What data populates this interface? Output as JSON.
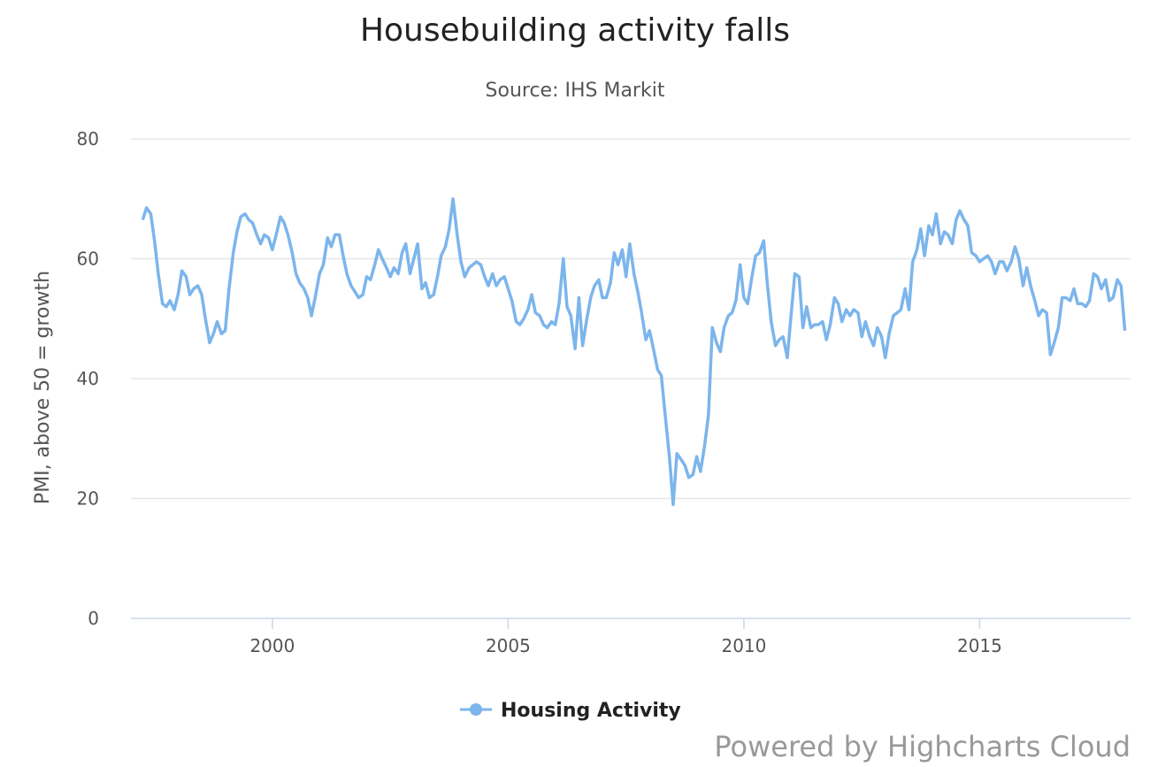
{
  "chart_data": {
    "type": "line",
    "title": "Housebuilding activity falls",
    "subtitle": "Source: IHS Markit",
    "ylabel": "PMI, above 50 = growth",
    "xlabel": "",
    "ylim": [
      0,
      80
    ],
    "yticks": [
      0,
      20,
      40,
      60,
      80
    ],
    "xticks": [
      "2000",
      "2005",
      "2010",
      "2015"
    ],
    "xrange": [
      1997.0,
      2018.2
    ],
    "grid": true,
    "legend_placement": "bottom-center",
    "series": [
      {
        "name": "Housing Activity",
        "color": "#7cb5ec",
        "points": [
          [
            1997.25,
            66.5
          ],
          [
            1997.33,
            68.5
          ],
          [
            1997.42,
            67.5
          ],
          [
            1997.5,
            63.0
          ],
          [
            1997.58,
            57.5
          ],
          [
            1997.67,
            52.5
          ],
          [
            1997.75,
            52.0
          ],
          [
            1997.83,
            53.0
          ],
          [
            1997.92,
            51.5
          ],
          [
            1998.0,
            54.0
          ],
          [
            1998.08,
            58.0
          ],
          [
            1998.17,
            57.0
          ],
          [
            1998.25,
            54.0
          ],
          [
            1998.33,
            55.0
          ],
          [
            1998.42,
            55.5
          ],
          [
            1998.5,
            54.0
          ],
          [
            1998.58,
            50.0
          ],
          [
            1998.67,
            46.0
          ],
          [
            1998.75,
            47.5
          ],
          [
            1998.83,
            49.5
          ],
          [
            1998.92,
            47.5
          ],
          [
            1999.0,
            48.0
          ],
          [
            1999.08,
            55.0
          ],
          [
            1999.17,
            61.0
          ],
          [
            1999.25,
            64.5
          ],
          [
            1999.33,
            67.0
          ],
          [
            1999.42,
            67.5
          ],
          [
            1999.5,
            66.5
          ],
          [
            1999.58,
            66.0
          ],
          [
            1999.67,
            64.0
          ],
          [
            1999.75,
            62.5
          ],
          [
            1999.83,
            64.0
          ],
          [
            1999.92,
            63.5
          ],
          [
            2000.0,
            61.5
          ],
          [
            2000.08,
            64.0
          ],
          [
            2000.17,
            67.0
          ],
          [
            2000.25,
            66.0
          ],
          [
            2000.33,
            64.0
          ],
          [
            2000.42,
            61.0
          ],
          [
            2000.5,
            57.5
          ],
          [
            2000.58,
            56.0
          ],
          [
            2000.67,
            55.0
          ],
          [
            2000.75,
            53.5
          ],
          [
            2000.83,
            50.5
          ],
          [
            2000.92,
            54.0
          ],
          [
            2001.0,
            57.5
          ],
          [
            2001.08,
            59.0
          ],
          [
            2001.17,
            63.5
          ],
          [
            2001.25,
            62.0
          ],
          [
            2001.33,
            64.0
          ],
          [
            2001.42,
            64.0
          ],
          [
            2001.5,
            60.5
          ],
          [
            2001.58,
            57.5
          ],
          [
            2001.67,
            55.5
          ],
          [
            2001.75,
            54.5
          ],
          [
            2001.83,
            53.5
          ],
          [
            2001.92,
            54.0
          ],
          [
            2002.0,
            57.0
          ],
          [
            2002.08,
            56.5
          ],
          [
            2002.17,
            59.0
          ],
          [
            2002.25,
            61.5
          ],
          [
            2002.33,
            60.0
          ],
          [
            2002.42,
            58.5
          ],
          [
            2002.5,
            57.0
          ],
          [
            2002.58,
            58.5
          ],
          [
            2002.67,
            57.5
          ],
          [
            2002.75,
            61.0
          ],
          [
            2002.83,
            62.5
          ],
          [
            2002.92,
            57.5
          ],
          [
            2003.0,
            60.0
          ],
          [
            2003.08,
            62.5
          ],
          [
            2003.17,
            55.0
          ],
          [
            2003.25,
            56.0
          ],
          [
            2003.33,
            53.5
          ],
          [
            2003.42,
            54.0
          ],
          [
            2003.5,
            57.0
          ],
          [
            2003.58,
            60.5
          ],
          [
            2003.67,
            62.0
          ],
          [
            2003.75,
            65.0
          ],
          [
            2003.83,
            70.0
          ],
          [
            2003.92,
            64.0
          ],
          [
            2004.0,
            59.5
          ],
          [
            2004.08,
            57.0
          ],
          [
            2004.17,
            58.5
          ],
          [
            2004.25,
            59.0
          ],
          [
            2004.33,
            59.5
          ],
          [
            2004.42,
            59.0
          ],
          [
            2004.5,
            57.0
          ],
          [
            2004.58,
            55.5
          ],
          [
            2004.67,
            57.5
          ],
          [
            2004.75,
            55.5
          ],
          [
            2004.83,
            56.5
          ],
          [
            2004.92,
            57.0
          ],
          [
            2005.0,
            55.0
          ],
          [
            2005.08,
            53.0
          ],
          [
            2005.17,
            49.5
          ],
          [
            2005.25,
            49.0
          ],
          [
            2005.33,
            50.0
          ],
          [
            2005.42,
            51.5
          ],
          [
            2005.5,
            54.0
          ],
          [
            2005.58,
            51.0
          ],
          [
            2005.67,
            50.5
          ],
          [
            2005.75,
            49.0
          ],
          [
            2005.83,
            48.5
          ],
          [
            2005.92,
            49.5
          ],
          [
            2006.0,
            49.0
          ],
          [
            2006.08,
            52.5
          ],
          [
            2006.17,
            60.0
          ],
          [
            2006.25,
            52.0
          ],
          [
            2006.33,
            50.5
          ],
          [
            2006.42,
            45.0
          ],
          [
            2006.5,
            53.5
          ],
          [
            2006.58,
            45.5
          ],
          [
            2006.67,
            50.0
          ],
          [
            2006.75,
            53.5
          ],
          [
            2006.83,
            55.5
          ],
          [
            2006.92,
            56.5
          ],
          [
            2007.0,
            53.5
          ],
          [
            2007.08,
            53.5
          ],
          [
            2007.17,
            56.0
          ],
          [
            2007.25,
            61.0
          ],
          [
            2007.33,
            59.0
          ],
          [
            2007.42,
            61.5
          ],
          [
            2007.5,
            57.0
          ],
          [
            2007.58,
            62.5
          ],
          [
            2007.67,
            57.5
          ],
          [
            2007.75,
            54.5
          ],
          [
            2007.83,
            51.0
          ],
          [
            2007.92,
            46.5
          ],
          [
            2008.0,
            48.0
          ],
          [
            2008.08,
            45.0
          ],
          [
            2008.17,
            41.5
          ],
          [
            2008.25,
            40.5
          ],
          [
            2008.33,
            34.0
          ],
          [
            2008.42,
            27.0
          ],
          [
            2008.5,
            19.0
          ],
          [
            2008.58,
            27.5
          ],
          [
            2008.67,
            26.5
          ],
          [
            2008.75,
            25.5
          ],
          [
            2008.83,
            23.5
          ],
          [
            2008.92,
            24.0
          ],
          [
            2009.0,
            27.0
          ],
          [
            2009.08,
            24.5
          ],
          [
            2009.17,
            29.0
          ],
          [
            2009.25,
            34.0
          ],
          [
            2009.33,
            48.5
          ],
          [
            2009.42,
            46.0
          ],
          [
            2009.5,
            44.5
          ],
          [
            2009.58,
            48.5
          ],
          [
            2009.67,
            50.5
          ],
          [
            2009.75,
            51.0
          ],
          [
            2009.83,
            53.0
          ],
          [
            2009.92,
            59.0
          ],
          [
            2010.0,
            53.5
          ],
          [
            2010.08,
            52.5
          ],
          [
            2010.17,
            57.0
          ],
          [
            2010.25,
            60.5
          ],
          [
            2010.33,
            61.0
          ],
          [
            2010.42,
            63.0
          ],
          [
            2010.5,
            55.5
          ],
          [
            2010.58,
            49.5
          ],
          [
            2010.67,
            45.5
          ],
          [
            2010.75,
            46.5
          ],
          [
            2010.83,
            47.0
          ],
          [
            2010.92,
            43.5
          ],
          [
            2011.0,
            50.5
          ],
          [
            2011.08,
            57.5
          ],
          [
            2011.17,
            57.0
          ],
          [
            2011.25,
            48.5
          ],
          [
            2011.33,
            52.0
          ],
          [
            2011.42,
            48.5
          ],
          [
            2011.5,
            49.0
          ],
          [
            2011.58,
            49.0
          ],
          [
            2011.67,
            49.5
          ],
          [
            2011.75,
            46.5
          ],
          [
            2011.83,
            49.0
          ],
          [
            2011.92,
            53.5
          ],
          [
            2012.0,
            52.5
          ],
          [
            2012.08,
            49.5
          ],
          [
            2012.17,
            51.5
          ],
          [
            2012.25,
            50.5
          ],
          [
            2012.33,
            51.5
          ],
          [
            2012.42,
            51.0
          ],
          [
            2012.5,
            47.0
          ],
          [
            2012.58,
            49.5
          ],
          [
            2012.67,
            47.0
          ],
          [
            2012.75,
            45.5
          ],
          [
            2012.83,
            48.5
          ],
          [
            2012.92,
            47.0
          ],
          [
            2013.0,
            43.5
          ],
          [
            2013.08,
            47.5
          ],
          [
            2013.17,
            50.5
          ],
          [
            2013.25,
            51.0
          ],
          [
            2013.33,
            51.5
          ],
          [
            2013.42,
            55.0
          ],
          [
            2013.5,
            51.5
          ],
          [
            2013.58,
            59.5
          ],
          [
            2013.67,
            61.5
          ],
          [
            2013.75,
            65.0
          ],
          [
            2013.83,
            60.5
          ],
          [
            2013.92,
            65.5
          ],
          [
            2014.0,
            64.0
          ],
          [
            2014.08,
            67.5
          ],
          [
            2014.17,
            62.5
          ],
          [
            2014.25,
            64.5
          ],
          [
            2014.33,
            64.0
          ],
          [
            2014.42,
            62.5
          ],
          [
            2014.5,
            66.5
          ],
          [
            2014.58,
            68.0
          ],
          [
            2014.67,
            66.5
          ],
          [
            2014.75,
            65.5
          ],
          [
            2014.83,
            61.0
          ],
          [
            2014.92,
            60.5
          ],
          [
            2015.0,
            59.5
          ],
          [
            2015.08,
            60.0
          ],
          [
            2015.17,
            60.5
          ],
          [
            2015.25,
            59.5
          ],
          [
            2015.33,
            57.5
          ],
          [
            2015.42,
            59.5
          ],
          [
            2015.5,
            59.5
          ],
          [
            2015.58,
            58.0
          ],
          [
            2015.67,
            59.5
          ],
          [
            2015.75,
            62.0
          ],
          [
            2015.83,
            60.0
          ],
          [
            2015.92,
            55.5
          ],
          [
            2016.0,
            58.5
          ],
          [
            2016.08,
            55.5
          ],
          [
            2016.17,
            53.0
          ],
          [
            2016.25,
            50.5
          ],
          [
            2016.33,
            51.5
          ],
          [
            2016.42,
            51.0
          ],
          [
            2016.5,
            44.0
          ],
          [
            2016.58,
            46.0
          ],
          [
            2016.67,
            48.5
          ],
          [
            2016.75,
            53.5
          ],
          [
            2016.83,
            53.5
          ],
          [
            2016.92,
            53.0
          ],
          [
            2017.0,
            55.0
          ],
          [
            2017.08,
            52.5
          ],
          [
            2017.17,
            52.5
          ],
          [
            2017.25,
            52.0
          ],
          [
            2017.33,
            53.0
          ],
          [
            2017.42,
            57.5
          ],
          [
            2017.5,
            57.0
          ],
          [
            2017.58,
            55.0
          ],
          [
            2017.67,
            56.5
          ],
          [
            2017.75,
            53.0
          ],
          [
            2017.83,
            53.5
          ],
          [
            2017.92,
            56.5
          ],
          [
            2018.0,
            55.5
          ],
          [
            2018.08,
            48.0
          ]
        ]
      }
    ]
  },
  "credits": "Powered by Highcharts Cloud"
}
